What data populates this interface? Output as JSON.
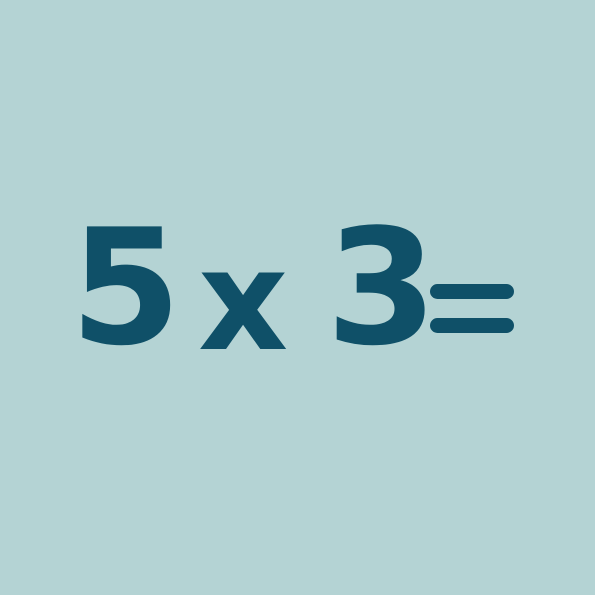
{
  "expression": {
    "operand_a": "5",
    "operator": "x",
    "operand_b": "3",
    "equals": "="
  },
  "colors": {
    "background": "#b4d3d4",
    "text": "#0f5068"
  }
}
